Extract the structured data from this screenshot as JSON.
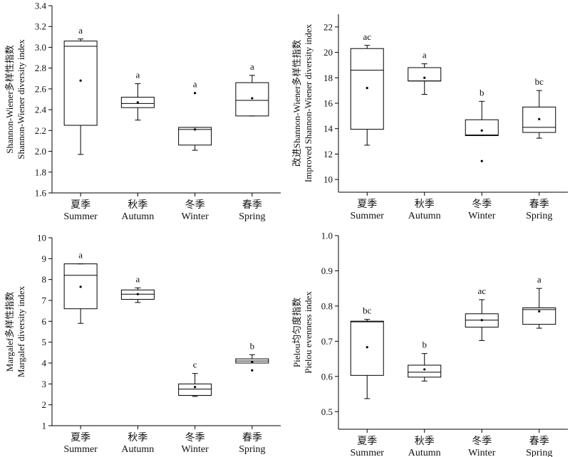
{
  "chart_data": [
    {
      "type": "box",
      "ylabel_cn": "Shannon-Wiener多样性指数",
      "ylabel_en": "Shannon-Wiener diversity index",
      "ylim": [
        1.6,
        3.4
      ],
      "yticks": [
        "1.6",
        "1.8",
        "2.0",
        "2.2",
        "2.4",
        "2.6",
        "2.8",
        "3.0",
        "3.2",
        "3.4"
      ],
      "categories": [
        {
          "cn": "夏季",
          "en": "Summer",
          "min": 1.97,
          "q1": 2.25,
          "median": 3.01,
          "q3": 3.06,
          "max": 3.08,
          "mean": 2.68,
          "sig": "a"
        },
        {
          "cn": "秋季",
          "en": "Autumn",
          "min": 2.3,
          "q1": 2.42,
          "median": 2.46,
          "q3": 2.52,
          "max": 2.65,
          "mean": 2.47,
          "sig": "a"
        },
        {
          "cn": "冬季",
          "en": "Winter",
          "min": 2.01,
          "q1": 2.06,
          "median": 2.21,
          "q3": 2.23,
          "max": 2.23,
          "mean": 2.21,
          "outliers": [
            2.56
          ],
          "sig": "a"
        },
        {
          "cn": "春季",
          "en": "Spring",
          "min": 2.34,
          "q1": 2.34,
          "median": 2.49,
          "q3": 2.66,
          "max": 2.73,
          "mean": 2.51,
          "sig": "a"
        }
      ]
    },
    {
      "type": "box",
      "ylabel_cn": "改进Shannon-Wiener多样性指数",
      "ylabel_en": "Improved  Shannon-Wiener diversity index",
      "ylim": [
        9,
        23
      ],
      "yticks": [
        "10",
        "12",
        "14",
        "16",
        "18",
        "20",
        "22"
      ],
      "categories": [
        {
          "cn": "夏季",
          "en": "Summer",
          "min": 12.7,
          "q1": 13.95,
          "median": 18.6,
          "q3": 20.3,
          "max": 20.55,
          "mean": 17.2,
          "sig": "ac"
        },
        {
          "cn": "秋季",
          "en": "Autumn",
          "min": 16.7,
          "q1": 17.75,
          "median": 17.75,
          "q3": 18.8,
          "max": 19.1,
          "mean": 18.0,
          "sig": "a"
        },
        {
          "cn": "冬季",
          "en": "Winter",
          "min": 13.45,
          "q1": 13.45,
          "median": 13.5,
          "q3": 14.7,
          "max": 16.15,
          "mean": 13.85,
          "outliers": [
            11.45
          ],
          "sig": "b"
        },
        {
          "cn": "春季",
          "en": "Spring",
          "min": 13.25,
          "q1": 13.7,
          "median": 14.1,
          "q3": 15.7,
          "max": 17.0,
          "mean": 14.75,
          "sig": "bc"
        }
      ]
    },
    {
      "type": "box",
      "ylabel_cn": "Margalef多样性指数",
      "ylabel_en": "Margalef diversity index",
      "ylim": [
        1,
        10
      ],
      "yticks": [
        "1",
        "2",
        "3",
        "4",
        "5",
        "6",
        "7",
        "8",
        "9",
        "10"
      ],
      "categories": [
        {
          "cn": "夏季",
          "en": "Summer",
          "min": 5.9,
          "q1": 6.6,
          "median": 8.2,
          "q3": 8.75,
          "max": 8.75,
          "mean": 7.65,
          "sig": "a"
        },
        {
          "cn": "秋季",
          "en": "Autumn",
          "min": 6.9,
          "q1": 7.05,
          "median": 7.3,
          "q3": 7.5,
          "max": 7.6,
          "mean": 7.3,
          "sig": "a"
        },
        {
          "cn": "冬季",
          "en": "Winter",
          "min": 2.4,
          "q1": 2.45,
          "median": 2.75,
          "q3": 3.0,
          "max": 3.5,
          "mean": 2.85,
          "sig": "c"
        },
        {
          "cn": "春季",
          "en": "Spring",
          "min": 4.0,
          "q1": 4.0,
          "median": 4.1,
          "q3": 4.2,
          "max": 4.4,
          "mean": 4.05,
          "outliers": [
            3.65
          ],
          "sig": "b"
        }
      ]
    },
    {
      "type": "box",
      "ylabel_cn": "Pielou均匀度指数",
      "ylabel_en": "Pielou evenness index",
      "ylim": [
        0.45,
        1.0
      ],
      "yticks": [
        "0.5",
        "0.6",
        "0.7",
        "0.8",
        "0.9",
        "1.0"
      ],
      "categories": [
        {
          "cn": "夏季",
          "en": "Summer",
          "min": 0.537,
          "q1": 0.603,
          "median": 0.755,
          "q3": 0.757,
          "max": 0.762,
          "mean": 0.683,
          "sig": "bc"
        },
        {
          "cn": "秋季",
          "en": "Autumn",
          "min": 0.587,
          "q1": 0.598,
          "median": 0.612,
          "q3": 0.632,
          "max": 0.665,
          "mean": 0.62,
          "sig": "b"
        },
        {
          "cn": "冬季",
          "en": "Winter",
          "min": 0.702,
          "q1": 0.74,
          "median": 0.76,
          "q3": 0.778,
          "max": 0.818,
          "mean": 0.76,
          "sig": "ac"
        },
        {
          "cn": "春季",
          "en": "Spring",
          "min": 0.737,
          "q1": 0.748,
          "median": 0.79,
          "q3": 0.795,
          "max": 0.85,
          "mean": 0.785,
          "sig": "a"
        }
      ]
    }
  ]
}
